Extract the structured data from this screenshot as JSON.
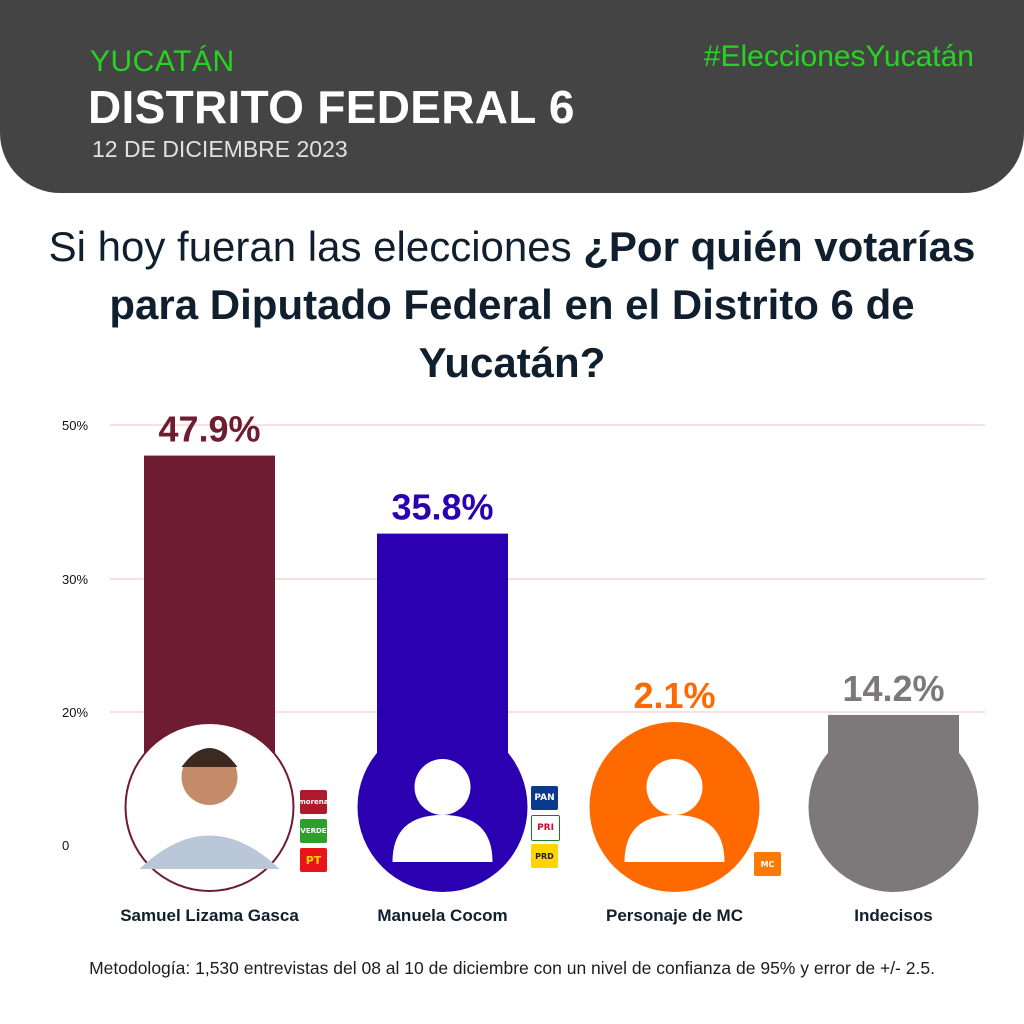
{
  "header": {
    "region": "YUCATÁN",
    "district": "DISTRITO FEDERAL 6",
    "date": "12 DE DICIEMBRE 2023",
    "hashtag": "#EleccionesYucatán"
  },
  "question": {
    "part1": "Si hoy fueran las elecciones ",
    "part2": "¿Por quién votarías para Diputado Federal en el Distrito 6 de Yucatán?"
  },
  "chart_data": {
    "type": "bar",
    "categories": [
      "Samuel Lizama Gasca",
      "Manuela Cocom",
      "Personaje de MC",
      "Indecisos"
    ],
    "values": [
      47.9,
      35.8,
      2.1,
      14.2
    ],
    "value_labels": [
      "47.9%",
      "35.8%",
      "2.1%",
      "14.2%"
    ],
    "colors": [
      "#6e1c32",
      "#2a00b0",
      "#ff6a00",
      "#7d797a"
    ],
    "ytick_labels": [
      "50%",
      "30%",
      "20%",
      "0"
    ],
    "ytick_values": [
      50,
      30,
      20,
      0
    ],
    "grid": true,
    "legend": "none"
  },
  "party_logos": {
    "samuel": [
      "morena",
      "VERDE",
      "PT"
    ],
    "manuela": [
      "PAN",
      "PRI",
      "PRD"
    ],
    "mc": [
      "MC"
    ]
  },
  "footnote": "Metodología: 1,530 entrevistas del 08 al 10 de diciembre con un nivel de confianza de 95% y error de +/- 2.5."
}
